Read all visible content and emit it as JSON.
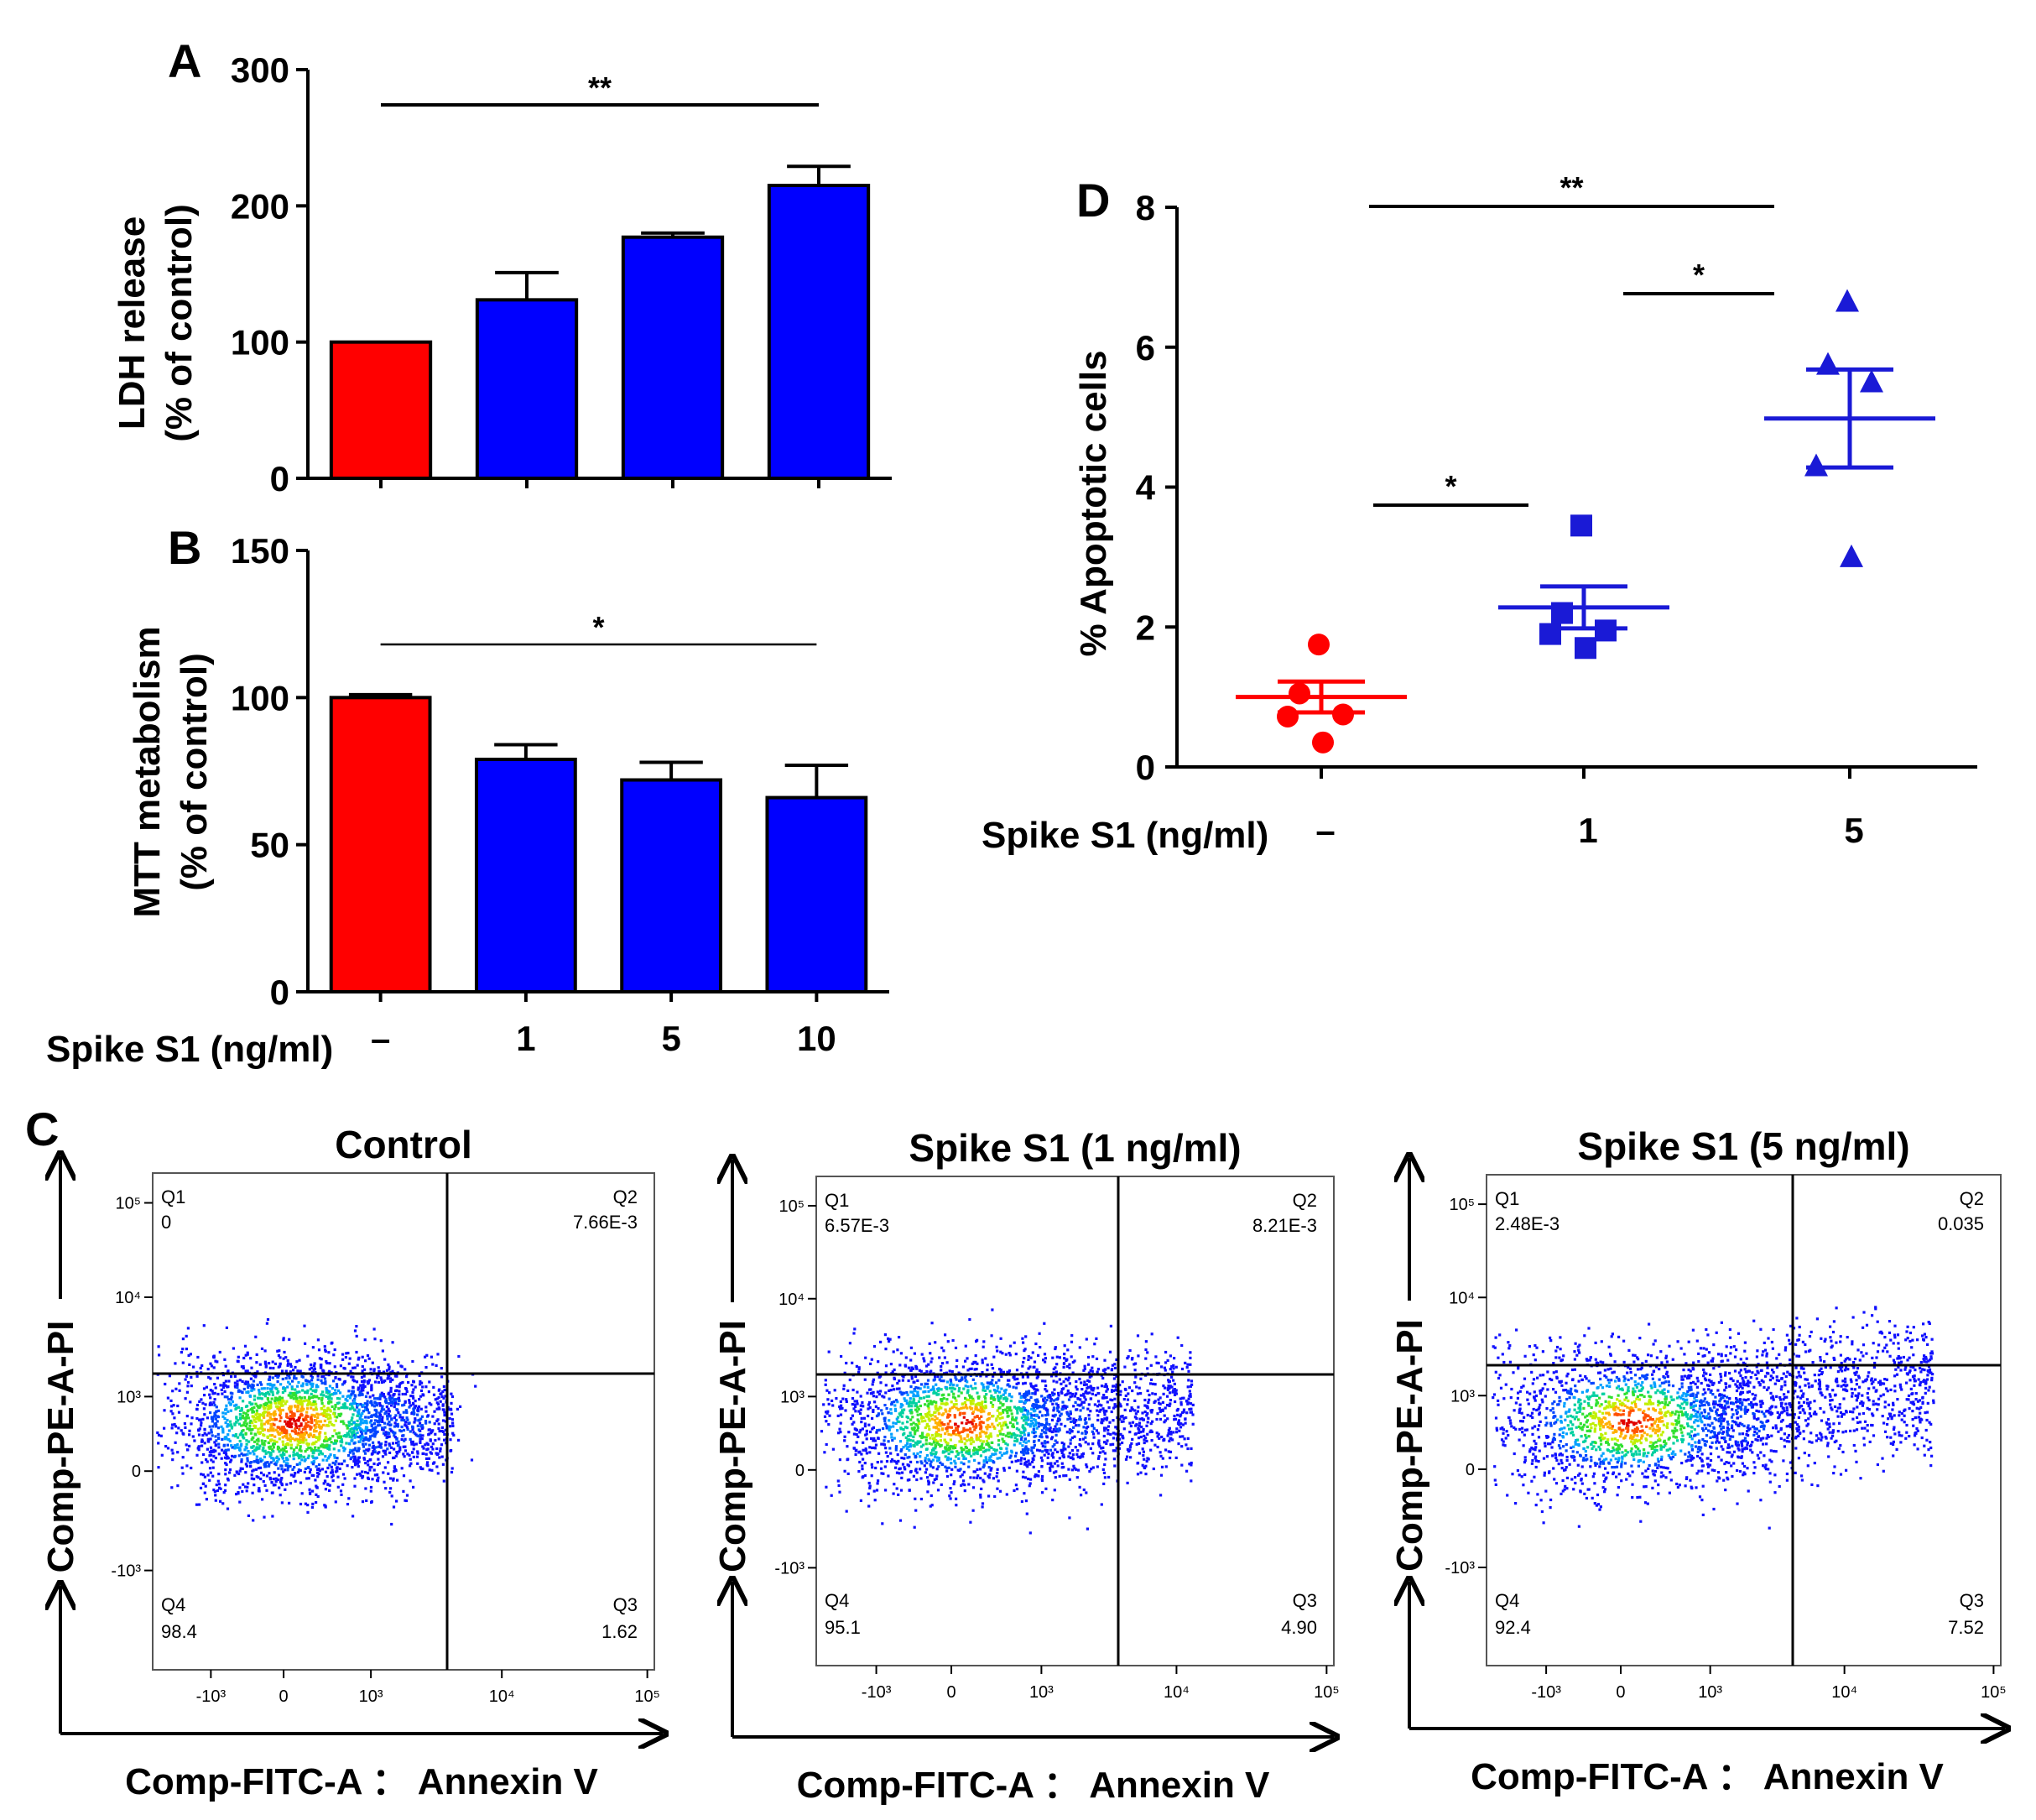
{
  "colors": {
    "control": "#ff0000",
    "treated": "#0000ff",
    "treated_scatter": "#1a1ad6",
    "axis": "#000000"
  },
  "chart_data": [
    {
      "id": "A",
      "panel_label": "A",
      "type": "bar",
      "ylabel_line1": "LDH release",
      "ylabel_line2": "(% of control)",
      "ylim": [
        0,
        300
      ],
      "yticks": [
        "0",
        "100",
        "200",
        "300"
      ],
      "categories": [
        "–",
        "1",
        "5",
        "10"
      ],
      "values": [
        100,
        131,
        177,
        215
      ],
      "errors": [
        0,
        20,
        3,
        14
      ],
      "bar_colors": [
        "control",
        "treated",
        "treated",
        "treated"
      ],
      "significance": [
        {
          "from": 0,
          "to": 3,
          "label": "**"
        }
      ]
    },
    {
      "id": "B",
      "panel_label": "B",
      "type": "bar",
      "ylabel_line1": "MTT metabolism",
      "ylabel_line2": "(% of control)",
      "ylim": [
        0,
        150
      ],
      "yticks": [
        "0",
        "50",
        "100",
        "150"
      ],
      "xlabel": "Spike S1 (ng/ml)",
      "categories": [
        "–",
        "1",
        "5",
        "10"
      ],
      "values": [
        100,
        79,
        72,
        66
      ],
      "errors": [
        1,
        5,
        6,
        11
      ],
      "bar_colors": [
        "control",
        "treated",
        "treated",
        "treated"
      ],
      "significance": [
        {
          "from": 0,
          "to": 3,
          "label": "*"
        }
      ]
    },
    {
      "id": "D",
      "panel_label": "D",
      "type": "scatter",
      "ylabel": "% Apoptotic cells",
      "xlabel": "Spike S1 (ng/ml)",
      "ylim": [
        0,
        8
      ],
      "yticks": [
        "0",
        "2",
        "4",
        "6",
        "8"
      ],
      "categories": [
        "–",
        "1",
        "5"
      ],
      "groups": [
        {
          "name": "–",
          "marker": "circle",
          "color": "control",
          "points": [
            1.75,
            1.05,
            0.75,
            0.72,
            0.35
          ],
          "mean": 1.0,
          "sem": 0.22
        },
        {
          "name": "1",
          "marker": "square",
          "color": "treated_scatter",
          "points": [
            3.45,
            2.2,
            1.95,
            1.9,
            1.7
          ],
          "mean": 2.28,
          "sem": 0.3
        },
        {
          "name": "5",
          "marker": "triangle",
          "color": "treated_scatter",
          "points": [
            6.65,
            5.75,
            5.5,
            4.3,
            3.0
          ],
          "mean": 4.98,
          "sem": 0.7
        }
      ],
      "significance": [
        {
          "from": 0,
          "to": 1,
          "label": "*"
        },
        {
          "from": 1,
          "to": 2,
          "label": "*"
        },
        {
          "from": 0,
          "to": 2,
          "label": "**"
        }
      ]
    }
  ],
  "flow_panel": {
    "panel_label": "C",
    "x_axis_label": "Comp-FITC-A ： Annexin V",
    "y_axis_label": "Comp-PE-A-PI",
    "x_ticks": [
      "-10³",
      "0",
      "10³",
      "10⁴",
      "10⁵"
    ],
    "y_ticks": [
      "10⁵",
      "10⁴",
      "10³",
      "0",
      "-10³"
    ],
    "plots": [
      {
        "title": "Control",
        "q1_name": "Q1",
        "q1": "0",
        "q2_name": "Q2",
        "q2": "7.66E-3",
        "q3_name": "Q3",
        "q3": "1.62",
        "q4_name": "Q4",
        "q4": "98.4",
        "spread": 0.0
      },
      {
        "title": "Spike S1 (1 ng/ml)",
        "q1_name": "Q1",
        "q1": "6.57E-3",
        "q2_name": "Q2",
        "q2": "8.21E-3",
        "q3_name": "Q3",
        "q3": "4.90",
        "q4_name": "Q4",
        "q4": "95.1",
        "spread": 0.5
      },
      {
        "title": "Spike S1 (5 ng/ml)",
        "q1_name": "Q1",
        "q1": "2.48E-3",
        "q2_name": "Q2",
        "q2": "0.035",
        "q3_name": "Q3",
        "q3": "7.52",
        "q4_name": "Q4",
        "q4": "92.4",
        "spread": 1.0
      }
    ]
  }
}
